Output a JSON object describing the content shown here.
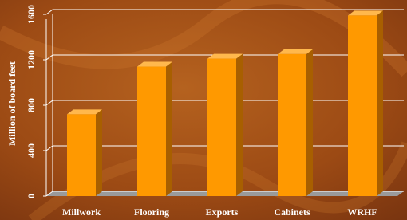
{
  "chart_data": {
    "type": "bar3d",
    "y_label": "Million of board feet",
    "categories": [
      "Millwork",
      "Flooring",
      "Exports",
      "Cabinets",
      "WRHF"
    ],
    "values": [
      720,
      1140,
      1210,
      1250,
      1590
    ],
    "color": "#ff9900",
    "ylim": [
      0,
      1600
    ],
    "yticks": [
      0,
      400,
      800,
      1200,
      1600
    ],
    "grid": true
  }
}
